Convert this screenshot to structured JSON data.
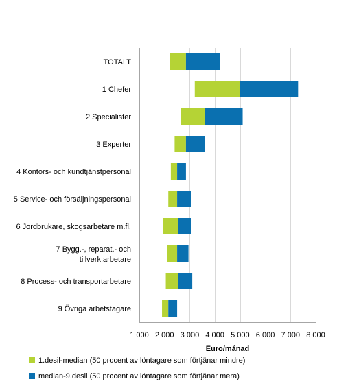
{
  "chart_data": {
    "type": "bar",
    "orientation": "horizontal",
    "stacked": "floating-range",
    "xlabel": "Euro/månad",
    "xlim": [
      1000,
      8000
    ],
    "xticks": [
      1000,
      2000,
      3000,
      4000,
      5000,
      6000,
      7000,
      8000
    ],
    "xtick_labels": [
      "1 000",
      "2 000",
      "3 000",
      "4 000",
      "5 000",
      "6 000",
      "7 000",
      "8 000"
    ],
    "grid": "vertical",
    "legend_position": "bottom",
    "categories": [
      [
        "TOTALT"
      ],
      [
        "1 Chefer"
      ],
      [
        "2 Specialister"
      ],
      [
        "3 Experter"
      ],
      [
        "4 Kontors- och kundtjänstpersonal"
      ],
      [
        "5 Service- och försäljningspersonal"
      ],
      [
        "6 Jordbrukare, skogsarbetare m.fl."
      ],
      [
        "7 Bygg.-, reparat.- och",
        "tillverk.arbetare"
      ],
      [
        "8 Process- och transportarbetare"
      ],
      [
        "9 Övriga arbetstagare"
      ]
    ],
    "decile_1": [
      2200,
      3200,
      2650,
      2400,
      2250,
      2150,
      1950,
      2100,
      2050,
      1900
    ],
    "median": [
      2850,
      5000,
      3600,
      2850,
      2500,
      2500,
      2550,
      2500,
      2550,
      2150
    ],
    "decile_9": [
      4200,
      7300,
      5100,
      3600,
      2850,
      3050,
      3050,
      2950,
      3100,
      2500
    ],
    "series": [
      {
        "name": "1.desil-median (50 procent av löntagare som förtjänar mindre)",
        "color": "#b5d335"
      },
      {
        "name": "median-9.desil (50 procent av löntagare som förtjänar mera)",
        "color": "#0a70b0"
      }
    ],
    "grid_color": "#d9d9d9",
    "axis_color": "#a6a6a6"
  }
}
